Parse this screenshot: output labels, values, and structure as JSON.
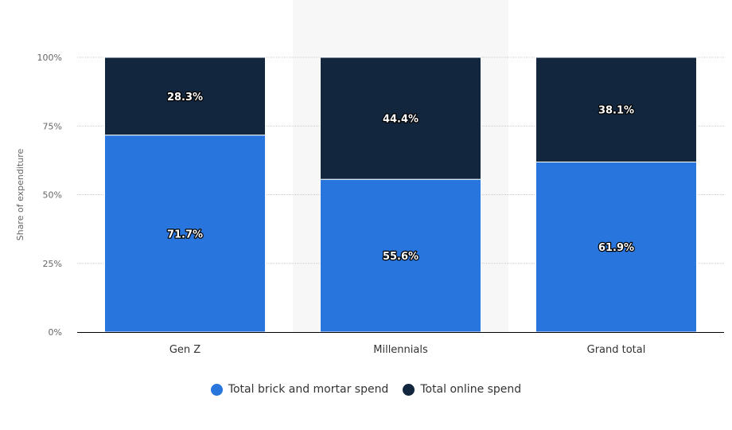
{
  "chart_data": {
    "type": "bar",
    "stacked": true,
    "categories": [
      "Gen Z",
      "Millennials",
      "Grand total"
    ],
    "series": [
      {
        "name": "Total brick and mortar spend",
        "values": [
          71.7,
          55.6,
          61.9
        ],
        "labels": [
          "71.7%",
          "55.6%",
          "61.9%"
        ],
        "color": "#2876dd"
      },
      {
        "name": "Total online spend",
        "values": [
          28.3,
          44.4,
          38.1
        ],
        "labels": [
          "28.3%",
          "44.4%",
          "38.1%"
        ],
        "color": "#12263d"
      }
    ],
    "ylabel": "Share of expenditure",
    "ylim": [
      0,
      100
    ],
    "yticks": [
      "0%",
      "25%",
      "50%",
      "75%",
      "100%"
    ],
    "grid": true,
    "legend": "bottom",
    "highlighted_category": "Millennials"
  }
}
